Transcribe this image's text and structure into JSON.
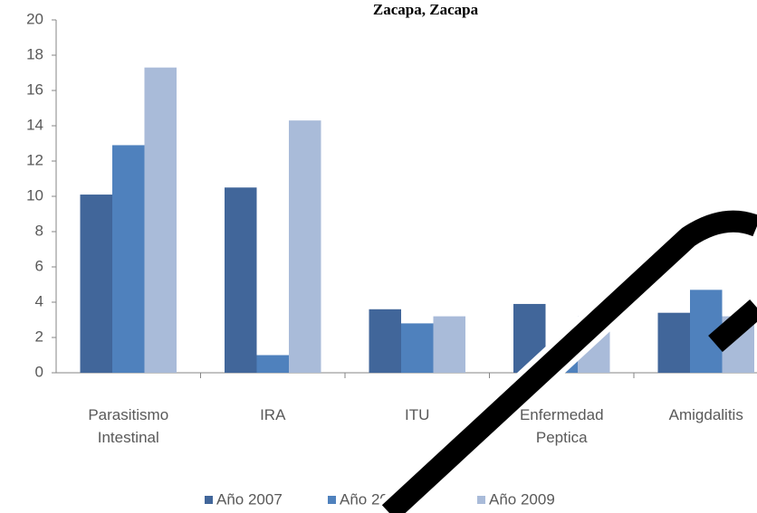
{
  "chart_data": {
    "type": "bar",
    "title": "Zacapa, Zacapa",
    "categories": [
      "Parasitismo Intestinal",
      "IRA",
      "ITU",
      "Enfermedad Peptica",
      "Amigdalitis"
    ],
    "series": [
      {
        "name": "Año 2007",
        "color": "#41669a",
        "values": [
          10.1,
          10.5,
          3.6,
          3.9,
          3.4
        ]
      },
      {
        "name": "Año 2008",
        "color": "#4f81bd",
        "values": [
          12.9,
          1.0,
          2.8,
          1.0,
          4.7
        ]
      },
      {
        "name": "Año 2009",
        "color": "#a9bbd9",
        "values": [
          17.3,
          14.3,
          3.2,
          3.2,
          3.2
        ]
      }
    ],
    "ylim": [
      0,
      20
    ],
    "yticks": [
      0,
      2,
      4,
      6,
      8,
      10,
      12,
      14,
      16,
      18,
      20
    ],
    "legend": "bottom"
  }
}
